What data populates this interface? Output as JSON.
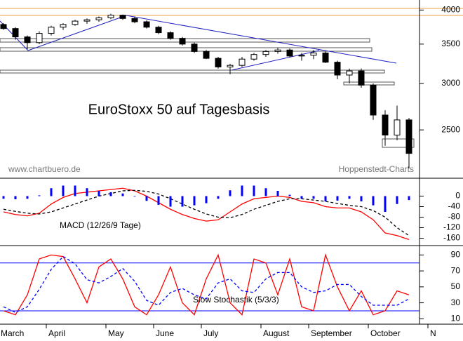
{
  "chart_data": [
    {
      "type": "candlestick",
      "title": "EuroStoxx 50 auf Tagesbasis",
      "annotations": [
        "www.chartbuero.de",
        "Hoppenstedt-Charts"
      ],
      "log_scale": true,
      "up_color": "#ffffff",
      "down_color": "#000000",
      "ylim": [
        2080,
        4070
      ],
      "yticks": [
        4000,
        3500,
        3000,
        2500
      ],
      "open": [
        3780,
        3720,
        3600,
        3520,
        3650,
        3740,
        3780,
        3830,
        3850,
        3880,
        3920,
        3870,
        3820,
        3740,
        3660,
        3580,
        3500,
        3400,
        3310,
        3200,
        3220,
        3300,
        3360,
        3400,
        3420,
        3340,
        3350,
        3380,
        3260,
        3100,
        3150,
        2980,
        2650,
        2450,
        2600,
        null,
        null
      ],
      "high": [
        3800,
        3740,
        3620,
        3680,
        3760,
        3800,
        3850,
        3870,
        3900,
        3940,
        3930,
        3900,
        3840,
        3760,
        3680,
        3600,
        3520,
        3420,
        3330,
        3240,
        3330,
        3380,
        3420,
        3450,
        3440,
        3380,
        3420,
        3400,
        3280,
        3180,
        3180,
        3000,
        2700,
        2750,
        2620,
        null,
        null
      ],
      "low": [
        3700,
        3560,
        3430,
        3500,
        3620,
        3700,
        3760,
        3790,
        3820,
        3860,
        3850,
        3800,
        3720,
        3640,
        3560,
        3480,
        3380,
        3300,
        3180,
        3110,
        3200,
        3280,
        3330,
        3370,
        3320,
        3280,
        3300,
        3250,
        3050,
        3000,
        2950,
        2600,
        2350,
        2400,
        2150,
        null,
        null
      ],
      "close": [
        3720,
        3600,
        3520,
        3650,
        3740,
        3780,
        3830,
        3850,
        3880,
        3920,
        3870,
        3820,
        3740,
        3660,
        3580,
        3500,
        3400,
        3310,
        3200,
        3220,
        3300,
        3360,
        3400,
        3420,
        3340,
        3350,
        3380,
        3260,
        3100,
        3150,
        2980,
        2650,
        2450,
        2600,
        2280,
        null,
        null
      ]
    },
    {
      "type": "line",
      "title": "MACD (12/26/9 Tage)",
      "ylim": [
        -180,
        60
      ],
      "yticks": [
        0,
        -40,
        -80,
        -120,
        -160
      ],
      "series": [
        {
          "color": "#ff0000",
          "values": [
            -60,
            -70,
            -75,
            -65,
            -30,
            -5,
            10,
            15,
            20,
            25,
            30,
            20,
            0,
            -25,
            -50,
            -70,
            -85,
            -95,
            -90,
            -60,
            -30,
            -10,
            -5,
            0,
            -5,
            -20,
            -25,
            -40,
            -45,
            -45,
            -60,
            -90,
            -140,
            -150,
            -165,
            null,
            null
          ]
        },
        {
          "color": "#000000",
          "dashed": true,
          "values": [
            -50,
            -58,
            -65,
            -68,
            -60,
            -45,
            -30,
            -15,
            0,
            10,
            20,
            22,
            18,
            8,
            -10,
            -30,
            -50,
            -68,
            -80,
            -82,
            -70,
            -50,
            -35,
            -20,
            -10,
            -10,
            -15,
            -20,
            -28,
            -35,
            -40,
            -55,
            -80,
            -120,
            -150,
            null,
            null
          ]
        },
        {
          "color": "#0000ff",
          "style": "bar",
          "values": [
            -10,
            -12,
            -10,
            3,
            30,
            40,
            40,
            30,
            20,
            15,
            10,
            -2,
            -18,
            -33,
            -40,
            -40,
            -35,
            -27,
            -10,
            22,
            40,
            40,
            30,
            20,
            5,
            -10,
            -10,
            -20,
            -17,
            -10,
            -20,
            -35,
            -60,
            -30,
            -15,
            null,
            null
          ]
        }
      ]
    },
    {
      "type": "line",
      "title": "Slow Stochastik (5/3/3)",
      "ylim": [
        5,
        100
      ],
      "yticks": [
        90,
        70,
        50,
        30,
        10
      ],
      "reference_lines": [
        80,
        20
      ],
      "reference_color": "#0000ff",
      "categories": [
        "March",
        null,
        null,
        null,
        "April",
        null,
        null,
        null,
        null,
        "May",
        null,
        null,
        null,
        "June",
        null,
        null,
        null,
        "July",
        null,
        null,
        null,
        null,
        "August",
        null,
        null,
        null,
        "September",
        null,
        null,
        null,
        null,
        "October",
        null,
        null,
        null,
        null,
        "N"
      ],
      "series": [
        {
          "color": "#ff0000",
          "values": [
            20,
            15,
            40,
            85,
            90,
            88,
            60,
            30,
            75,
            85,
            60,
            25,
            15,
            40,
            75,
            30,
            15,
            60,
            90,
            30,
            15,
            85,
            80,
            40,
            85,
            25,
            20,
            90,
            50,
            20,
            45,
            15,
            20,
            45,
            40,
            null,
            null
          ]
        },
        {
          "color": "#0000ff",
          "dashed": true,
          "values": [
            25,
            18,
            25,
            47,
            72,
            88,
            79,
            59,
            55,
            63,
            73,
            57,
            33,
            27,
            43,
            48,
            40,
            35,
            55,
            60,
            45,
            43,
            60,
            68,
            68,
            50,
            43,
            45,
            53,
            53,
            38,
            27,
            27,
            27,
            35,
            null,
            null
          ]
        }
      ]
    }
  ]
}
